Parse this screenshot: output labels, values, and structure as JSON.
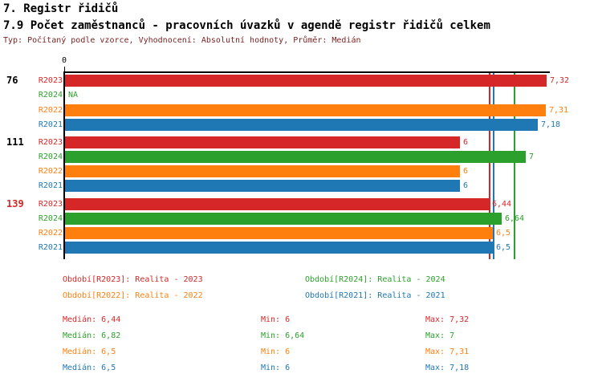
{
  "header": {
    "title_line1": "7. Registr řidičů",
    "title_line2": "7.9 Počet zaměstnanců - pracovních úvazků v agendě registr řidičů celkem",
    "meta_line": "Typ: Počítaný podle vzorce, Vyhodnocení: Absolutní hodnoty, Průměr: Medián"
  },
  "colors": {
    "r2023": "#d62728",
    "r2024": "#2ca02c",
    "r2022": "#ff7f0e",
    "r2021": "#1f77b4",
    "meta": "#7a1f1f",
    "axis": "#000000"
  },
  "chart_data": {
    "type": "bar",
    "orientation": "horizontal",
    "title": "7.9 Počet zaměstnanců - pracovních úvazků v agendě registr řidičů celkem",
    "xlim": [
      0,
      7.35
    ],
    "axis": {
      "origin_tick_label": "0"
    },
    "series_order": [
      "R2023",
      "R2024",
      "R2022",
      "R2021"
    ],
    "groups": [
      {
        "label": "76",
        "label_color": "#000000",
        "bars": [
          {
            "series": "R2023",
            "value": 7.32,
            "display": "7,32"
          },
          {
            "series": "R2024",
            "value": null,
            "display": "NA"
          },
          {
            "series": "R2022",
            "value": 7.31,
            "display": "7,31"
          },
          {
            "series": "R2021",
            "value": 7.18,
            "display": "7,18"
          }
        ]
      },
      {
        "label": "111",
        "label_color": "#000000",
        "bars": [
          {
            "series": "R2023",
            "value": 6,
            "display": "6"
          },
          {
            "series": "R2024",
            "value": 7,
            "display": "7"
          },
          {
            "series": "R2022",
            "value": 6,
            "display": "6"
          },
          {
            "series": "R2021",
            "value": 6,
            "display": "6"
          }
        ]
      },
      {
        "label": "139",
        "label_color": "#d62728",
        "bars": [
          {
            "series": "R2023",
            "value": 6.44,
            "display": "6,44"
          },
          {
            "series": "R2024",
            "value": 6.64,
            "display": "6,64"
          },
          {
            "series": "R2022",
            "value": 6.5,
            "display": "6,5"
          },
          {
            "series": "R2021",
            "value": 6.5,
            "display": "6,5"
          }
        ]
      }
    ],
    "median_lines": [
      {
        "series": "R2023",
        "value": 6.44
      },
      {
        "series": "R2022",
        "value": 6.5
      },
      {
        "series": "R2021",
        "value": 6.5
      },
      {
        "series": "R2024",
        "value": 6.82
      }
    ]
  },
  "legend": {
    "items": [
      {
        "series": "R2023",
        "label": "Období[R2023]: Realita - 2023"
      },
      {
        "series": "R2024",
        "label": "Období[R2024]: Realita - 2024"
      },
      {
        "series": "R2022",
        "label": "Období[R2022]: Realita - 2022"
      },
      {
        "series": "R2021",
        "label": "Období[R2021]: Realita - 2021"
      }
    ]
  },
  "stats": {
    "rows": [
      {
        "series": "R2023",
        "median": "Medián: 6,44",
        "min": "Min: 6",
        "max": "Max: 7,32"
      },
      {
        "series": "R2024",
        "median": "Medián: 6,82",
        "min": "Min: 6,64",
        "max": "Max: 7"
      },
      {
        "series": "R2022",
        "median": "Medián: 6,5",
        "min": "Min: 6",
        "max": "Max: 7,31"
      },
      {
        "series": "R2021",
        "median": "Medián: 6,5",
        "min": "Min: 6",
        "max": "Max: 7,18"
      }
    ]
  }
}
